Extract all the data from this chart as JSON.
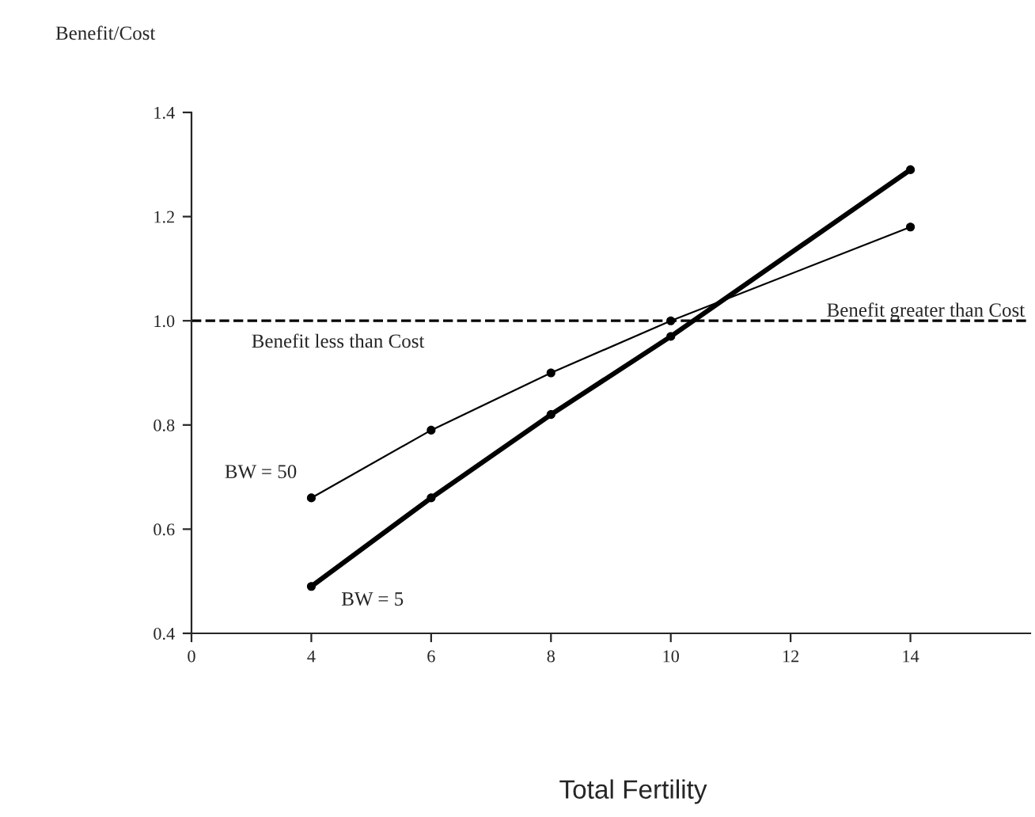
{
  "chart_data": {
    "type": "line",
    "ylabel": "Benefit/Cost",
    "xlabel": "Total Fertility",
    "categories": [
      "0",
      "4",
      "6",
      "8",
      "10",
      "12",
      "14"
    ],
    "series": [
      {
        "name": "BW = 50",
        "color": "#000000",
        "values": [
          null,
          0.66,
          0.79,
          0.9,
          1.0,
          null,
          1.18
        ]
      },
      {
        "name": "BW = 5",
        "color": "#000000",
        "values": [
          null,
          0.49,
          0.66,
          0.82,
          0.97,
          null,
          1.29
        ]
      }
    ],
    "ylim": [
      0.4,
      1.4
    ],
    "yticks": [
      {
        "value": 0.4,
        "label": "0.4"
      },
      {
        "value": 0.6,
        "label": "0.6"
      },
      {
        "value": 0.8,
        "label": "0.8"
      },
      {
        "value": 1.0,
        "label": "1.0"
      },
      {
        "value": 1.2,
        "label": "1.2"
      },
      {
        "value": 1.4,
        "label": "1.4"
      }
    ],
    "ref_lines": [
      {
        "axis": "y",
        "value": 1.0,
        "line_style": "dashed",
        "color": "#000000"
      }
    ],
    "annotations": [
      "Benefit greater than Cost",
      "Benefit less than Cost"
    ],
    "marker": "circle",
    "line_style": "solid",
    "grid": false,
    "legend": false
  }
}
